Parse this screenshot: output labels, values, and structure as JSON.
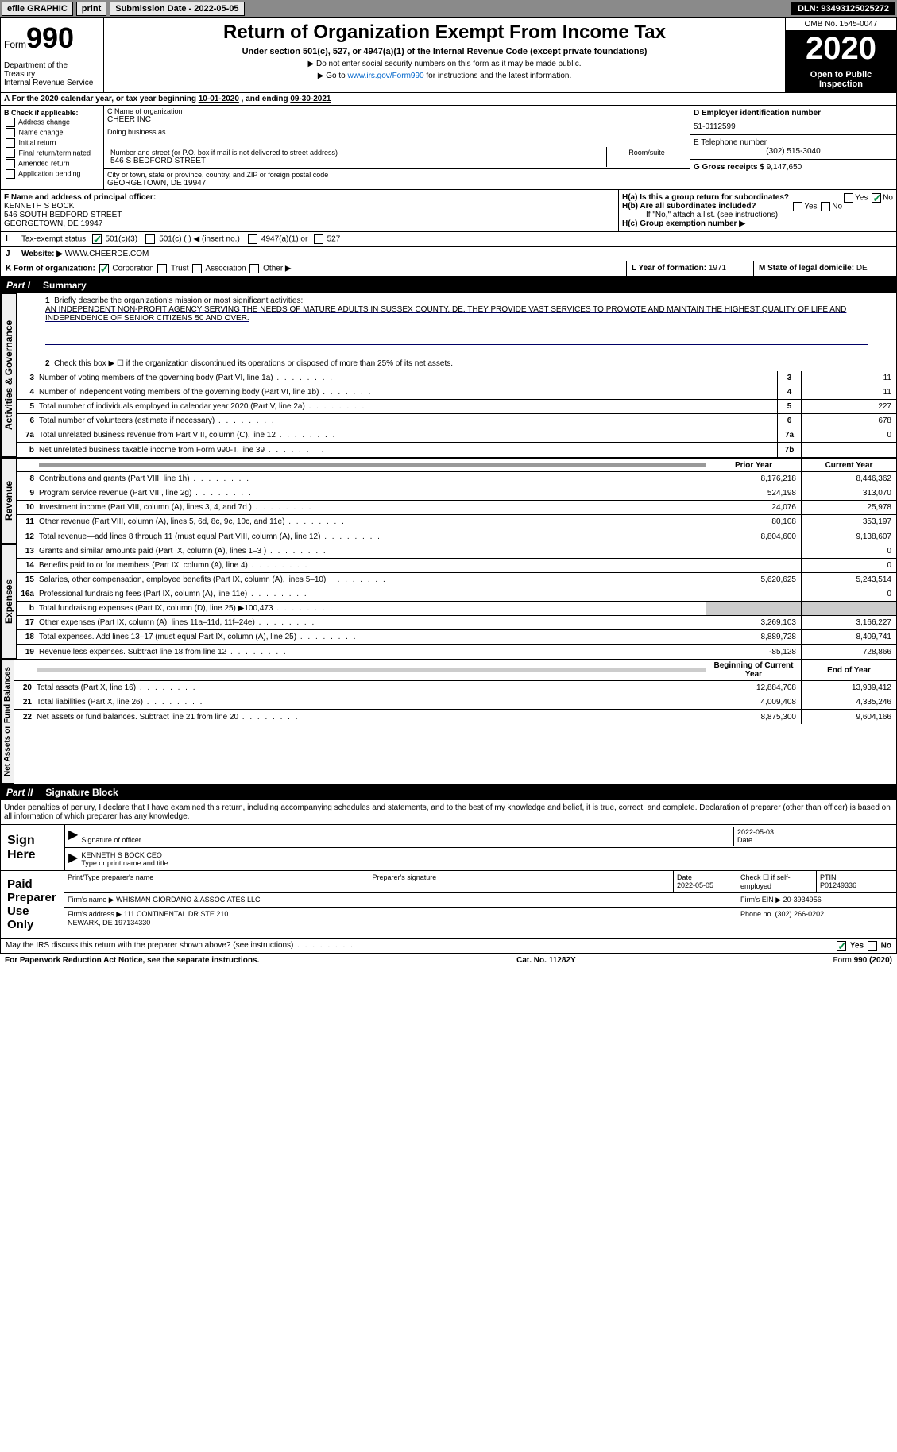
{
  "topbar": {
    "efile": "efile GRAPHIC",
    "print": "print",
    "submission_label": "Submission Date - ",
    "submission_date": "2022-05-05",
    "dln_label": "DLN: ",
    "dln": "93493125025272"
  },
  "header": {
    "form_label": "Form",
    "form_num": "990",
    "dept": "Department of the Treasury\nInternal Revenue Service",
    "title": "Return of Organization Exempt From Income Tax",
    "subtitle": "Under section 501(c), 527, or 4947(a)(1) of the Internal Revenue Code (except private foundations)",
    "note1": "▶ Do not enter social security numbers on this form as it may be made public.",
    "note2_pre": "▶ Go to ",
    "note2_link": "www.irs.gov/Form990",
    "note2_post": " for instructions and the latest information.",
    "omb": "OMB No. 1545-0047",
    "year": "2020",
    "open": "Open to Public Inspection"
  },
  "line_a": {
    "text": "For the 2020 calendar year, or tax year beginning ",
    "begin": "10-01-2020",
    "mid": " , and ending ",
    "end": "09-30-2021"
  },
  "section_b": {
    "label": "B Check if applicable:",
    "opts": [
      "Address change",
      "Name change",
      "Initial return",
      "Final return/terminated",
      "Amended return",
      "Application pending"
    ]
  },
  "section_c": {
    "name_label": "C Name of organization",
    "name": "CHEER INC",
    "dba_label": "Doing business as",
    "addr_label": "Number and street (or P.O. box if mail is not delivered to street address)",
    "room_label": "Room/suite",
    "addr": "546 S BEDFORD STREET",
    "city_label": "City or town, state or province, country, and ZIP or foreign postal code",
    "city": "GEORGETOWN, DE  19947"
  },
  "section_d": {
    "ein_label": "D Employer identification number",
    "ein": "51-0112599",
    "phone_label": "E Telephone number",
    "phone": "(302) 515-3040",
    "gross_label": "G Gross receipts $ ",
    "gross": "9,147,650"
  },
  "section_f": {
    "label": "F Name and address of principal officer:",
    "name": "KENNETH S BOCK",
    "addr1": "546 SOUTH BEDFORD STREET",
    "addr2": "GEORGETOWN, DE  19947"
  },
  "section_h": {
    "ha": "H(a)  Is this a group return for subordinates?",
    "hb": "H(b)  Are all subordinates included?",
    "hb_note": "If \"No,\" attach a list. (see instructions)",
    "hc": "H(c)  Group exemption number ▶",
    "yes": "Yes",
    "no": "No"
  },
  "line_i": {
    "label": "Tax-exempt status:",
    "opts": [
      "501(c)(3)",
      "501(c) (  ) ◀ (insert no.)",
      "4947(a)(1) or",
      "527"
    ]
  },
  "line_j": {
    "label": "Website: ▶",
    "value": "WWW.CHEERDE.COM"
  },
  "line_k": {
    "label": "K Form of organization:",
    "opts": [
      "Corporation",
      "Trust",
      "Association",
      "Other ▶"
    ],
    "l_label": "L Year of formation: ",
    "l_val": "1971",
    "m_label": "M State of legal domicile: ",
    "m_val": "DE"
  },
  "part1": {
    "label": "Part I",
    "title": "Summary",
    "governance_label": "Activities & Governance",
    "revenue_label": "Revenue",
    "expenses_label": "Expenses",
    "netassets_label": "Net Assets or Fund Balances",
    "line1_label": "Briefly describe the organization's mission or most significant activities:",
    "line1_text": "AN INDEPENDENT NON-PROFIT AGENCY SERVING THE NEEDS OF MATURE ADULTS IN SUSSEX COUNTY, DE. THEY PROVIDE VAST SERVICES TO PROMOTE AND MAINTAIN THE HIGHEST QUALITY OF LIFE AND INDEPENDENCE OF SENIOR CITIZENS 50 AND OVER.",
    "line2": "Check this box ▶ ☐  if the organization discontinued its operations or disposed of more than 25% of its net assets.",
    "lines_gov": [
      {
        "n": "3",
        "d": "Number of voting members of the governing body (Part VI, line 1a)",
        "box": "3",
        "v": "11"
      },
      {
        "n": "4",
        "d": "Number of independent voting members of the governing body (Part VI, line 1b)",
        "box": "4",
        "v": "11"
      },
      {
        "n": "5",
        "d": "Total number of individuals employed in calendar year 2020 (Part V, line 2a)",
        "box": "5",
        "v": "227"
      },
      {
        "n": "6",
        "d": "Total number of volunteers (estimate if necessary)",
        "box": "6",
        "v": "678"
      },
      {
        "n": "7a",
        "d": "Total unrelated business revenue from Part VIII, column (C), line 12",
        "box": "7a",
        "v": "0"
      },
      {
        "n": "b",
        "d": "Net unrelated business taxable income from Form 990-T, line 39",
        "box": "7b",
        "v": ""
      }
    ],
    "prior_label": "Prior Year",
    "current_label": "Current Year",
    "lines_rev": [
      {
        "n": "8",
        "d": "Contributions and grants (Part VIII, line 1h)",
        "p": "8,176,218",
        "c": "8,446,362"
      },
      {
        "n": "9",
        "d": "Program service revenue (Part VIII, line 2g)",
        "p": "524,198",
        "c": "313,070"
      },
      {
        "n": "10",
        "d": "Investment income (Part VIII, column (A), lines 3, 4, and 7d )",
        "p": "24,076",
        "c": "25,978"
      },
      {
        "n": "11",
        "d": "Other revenue (Part VIII, column (A), lines 5, 6d, 8c, 9c, 10c, and 11e)",
        "p": "80,108",
        "c": "353,197"
      },
      {
        "n": "12",
        "d": "Total revenue—add lines 8 through 11 (must equal Part VIII, column (A), line 12)",
        "p": "8,804,600",
        "c": "9,138,607"
      }
    ],
    "lines_exp": [
      {
        "n": "13",
        "d": "Grants and similar amounts paid (Part IX, column (A), lines 1–3 )",
        "p": "",
        "c": "0"
      },
      {
        "n": "14",
        "d": "Benefits paid to or for members (Part IX, column (A), line 4)",
        "p": "",
        "c": "0"
      },
      {
        "n": "15",
        "d": "Salaries, other compensation, employee benefits (Part IX, column (A), lines 5–10)",
        "p": "5,620,625",
        "c": "5,243,514"
      },
      {
        "n": "16a",
        "d": "Professional fundraising fees (Part IX, column (A), line 11e)",
        "p": "",
        "c": "0"
      },
      {
        "n": "b",
        "d": "Total fundraising expenses (Part IX, column (D), line 25) ▶100,473",
        "p": "shaded",
        "c": "shaded"
      },
      {
        "n": "17",
        "d": "Other expenses (Part IX, column (A), lines 11a–11d, 11f–24e)",
        "p": "3,269,103",
        "c": "3,166,227"
      },
      {
        "n": "18",
        "d": "Total expenses. Add lines 13–17 (must equal Part IX, column (A), line 25)",
        "p": "8,889,728",
        "c": "8,409,741"
      },
      {
        "n": "19",
        "d": "Revenue less expenses. Subtract line 18 from line 12",
        "p": "-85,128",
        "c": "728,866"
      }
    ],
    "begin_label": "Beginning of Current Year",
    "end_label": "End of Year",
    "lines_net": [
      {
        "n": "20",
        "d": "Total assets (Part X, line 16)",
        "p": "12,884,708",
        "c": "13,939,412"
      },
      {
        "n": "21",
        "d": "Total liabilities (Part X, line 26)",
        "p": "4,009,408",
        "c": "4,335,246"
      },
      {
        "n": "22",
        "d": "Net assets or fund balances. Subtract line 21 from line 20",
        "p": "8,875,300",
        "c": "9,604,166"
      }
    ]
  },
  "part2": {
    "label": "Part II",
    "title": "Signature Block",
    "intro": "Under penalties of perjury, I declare that I have examined this return, including accompanying schedules and statements, and to the best of my knowledge and belief, it is true, correct, and complete. Declaration of preparer (other than officer) is based on all information of which preparer has any knowledge.",
    "sign_here": "Sign Here",
    "sig_officer": "Signature of officer",
    "sig_date": "2022-05-03",
    "date_label": "Date",
    "officer_name": "KENNETH S BOCK CEO",
    "type_label": "Type or print name and title",
    "paid_label": "Paid Preparer Use Only",
    "prep_name_label": "Print/Type preparer's name",
    "prep_sig_label": "Preparer's signature",
    "prep_date_label": "Date",
    "prep_date": "2022-05-05",
    "prep_check_label": "Check ☐ if self-employed",
    "ptin_label": "PTIN",
    "ptin": "P01249336",
    "firm_name_label": "Firm's name    ▶",
    "firm_name": "WHISMAN GIORDANO & ASSOCIATES LLC",
    "firm_ein_label": "Firm's EIN ▶",
    "firm_ein": "20-3934956",
    "firm_addr_label": "Firm's address ▶",
    "firm_addr": "111 CONTINENTAL DR STE 210\nNEWARK, DE  197134330",
    "firm_phone_label": "Phone no. ",
    "firm_phone": "(302) 266-0202",
    "irs_discuss": "May the IRS discuss this return with the preparer shown above? (see instructions)"
  },
  "footer": {
    "paperwork": "For Paperwork Reduction Act Notice, see the separate instructions.",
    "cat": "Cat. No. 11282Y",
    "form": "Form 990 (2020)"
  }
}
